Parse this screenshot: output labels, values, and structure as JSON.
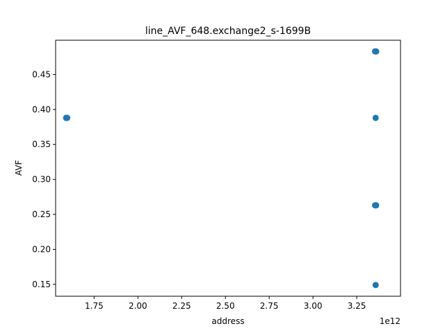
{
  "chart_data": {
    "type": "scatter",
    "title": "line_AVF_648.exchange2_s-1699B",
    "xlabel": "address",
    "ylabel": "AVF",
    "x_offset_label": "1e12",
    "xlim": [
      1.53,
      3.5
    ],
    "ylim": [
      0.133,
      0.499
    ],
    "x_ticks": [
      1.75,
      2.0,
      2.25,
      2.5,
      2.75,
      3.0,
      3.25
    ],
    "x_tick_labels": [
      "1.75",
      "2.00",
      "2.25",
      "2.50",
      "2.75",
      "3.00",
      "3.25"
    ],
    "y_ticks": [
      0.15,
      0.2,
      0.25,
      0.3,
      0.35,
      0.4,
      0.45
    ],
    "y_tick_labels": [
      "0.15",
      "0.20",
      "0.25",
      "0.30",
      "0.35",
      "0.40",
      "0.45"
    ],
    "grid": false,
    "marker_color": "#1f77b4",
    "points": [
      {
        "x": 1.59,
        "y": 0.388
      },
      {
        "x": 1.593,
        "y": 0.388
      },
      {
        "x": 1.596,
        "y": 0.388
      },
      {
        "x": 3.355,
        "y": 0.483
      },
      {
        "x": 3.358,
        "y": 0.483
      },
      {
        "x": 3.361,
        "y": 0.483
      },
      {
        "x": 3.358,
        "y": 0.388
      },
      {
        "x": 3.355,
        "y": 0.263
      },
      {
        "x": 3.358,
        "y": 0.263
      },
      {
        "x": 3.361,
        "y": 0.263
      },
      {
        "x": 3.358,
        "y": 0.149
      }
    ]
  }
}
